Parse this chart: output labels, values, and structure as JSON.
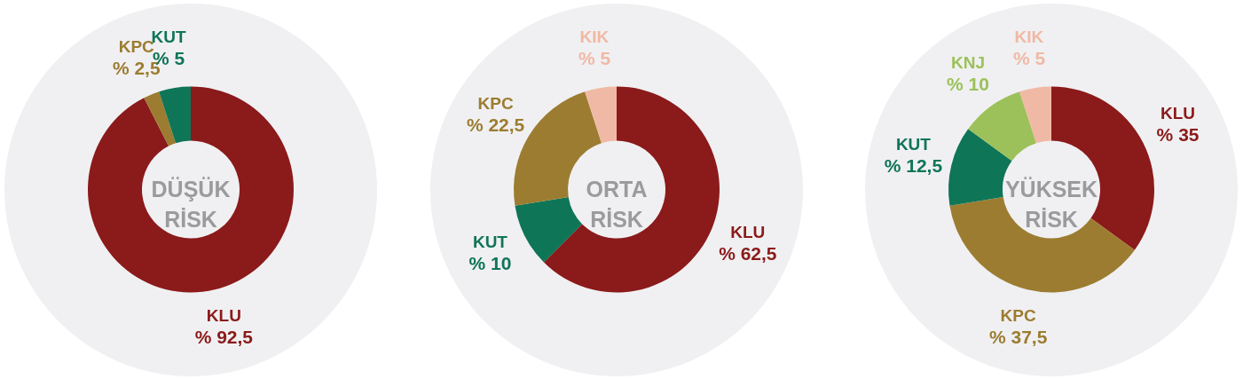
{
  "chart_data": [
    {
      "type": "donut",
      "title": "DÜŞÜK RİSK",
      "categories": [
        "KLU",
        "KPC",
        "KUT"
      ],
      "values": [
        92.5,
        2.5,
        5
      ],
      "colors": [
        "#8b1a1a",
        "#9c7c30",
        "#0f7557"
      ],
      "value_labels": [
        "% 92,5",
        "% 2,5",
        "% 5"
      ]
    },
    {
      "type": "donut",
      "title": "ORTA RİSK",
      "categories": [
        "KLU",
        "KUT",
        "KPC",
        "KIK"
      ],
      "values": [
        62.5,
        10,
        22.5,
        5
      ],
      "colors": [
        "#8b1a1a",
        "#0f7557",
        "#9c7c30",
        "#f0b9a5"
      ],
      "value_labels": [
        "% 62,5",
        "% 10",
        "% 22,5",
        "% 5"
      ]
    },
    {
      "type": "donut",
      "title": "YÜKSEK RİSK",
      "categories": [
        "KLU",
        "KPC",
        "KUT",
        "KNJ",
        "KIK"
      ],
      "values": [
        35,
        37.5,
        12.5,
        10,
        5
      ],
      "colors": [
        "#8b1a1a",
        "#9c7c30",
        "#0f7557",
        "#9cc15a",
        "#f0b9a5"
      ],
      "value_labels": [
        "% 35",
        "% 37,5",
        "% 12,5",
        "% 10",
        "% 5"
      ]
    }
  ]
}
